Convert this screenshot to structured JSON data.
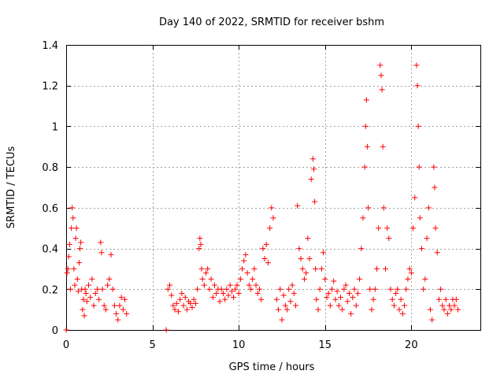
{
  "chart_data": {
    "type": "scatter",
    "title": "Day 140 of 2022, SRMTID for receiver bshm",
    "xlabel": "GPS time / hours",
    "ylabel": "SRMTID / TECUs",
    "xlim": [
      0,
      24
    ],
    "ylim": [
      0,
      1.4
    ],
    "x_ticks": [
      0,
      5,
      10,
      15,
      20
    ],
    "y_ticks": [
      0,
      0.2,
      0.4,
      0.6,
      0.8,
      1,
      1.2,
      1.4
    ],
    "x_tick_labels": [
      "0",
      "5",
      "10",
      "15",
      "20"
    ],
    "y_tick_labels": [
      "0",
      "0.2",
      "0.4",
      "0.6",
      "0.8",
      "1",
      "1.2",
      "1.4"
    ],
    "grid": true,
    "marker": "+",
    "series": [
      {
        "name": "bshm",
        "color": "#ff0000",
        "points": [
          [
            0.0,
            0.0
          ],
          [
            0.05,
            0.28
          ],
          [
            0.1,
            0.3
          ],
          [
            0.15,
            0.36
          ],
          [
            0.2,
            0.42
          ],
          [
            0.25,
            0.2
          ],
          [
            0.3,
            0.5
          ],
          [
            0.35,
            0.6
          ],
          [
            0.4,
            0.55
          ],
          [
            0.45,
            0.3
          ],
          [
            0.5,
            0.22
          ],
          [
            0.55,
            0.45
          ],
          [
            0.6,
            0.5
          ],
          [
            0.65,
            0.25
          ],
          [
            0.7,
            0.19
          ],
          [
            0.75,
            0.33
          ],
          [
            0.8,
            0.4
          ],
          [
            0.85,
            0.43
          ],
          [
            0.9,
            0.2
          ],
          [
            0.95,
            0.1
          ],
          [
            1.0,
            0.15
          ],
          [
            1.05,
            0.07
          ],
          [
            1.1,
            0.2
          ],
          [
            1.15,
            0.18
          ],
          [
            1.2,
            0.14
          ],
          [
            1.3,
            0.22
          ],
          [
            1.4,
            0.16
          ],
          [
            1.5,
            0.25
          ],
          [
            1.6,
            0.12
          ],
          [
            1.7,
            0.18
          ],
          [
            1.8,
            0.2
          ],
          [
            1.9,
            0.15
          ],
          [
            2.0,
            0.43
          ],
          [
            2.05,
            0.38
          ],
          [
            2.1,
            0.2
          ],
          [
            2.2,
            0.12
          ],
          [
            2.3,
            0.1
          ],
          [
            2.4,
            0.22
          ],
          [
            2.5,
            0.25
          ],
          [
            2.6,
            0.37
          ],
          [
            2.7,
            0.2
          ],
          [
            2.8,
            0.12
          ],
          [
            2.9,
            0.08
          ],
          [
            3.0,
            0.05
          ],
          [
            3.1,
            0.12
          ],
          [
            3.2,
            0.16
          ],
          [
            3.3,
            0.1
          ],
          [
            3.4,
            0.15
          ],
          [
            3.5,
            0.08
          ],
          [
            5.8,
            0.0
          ],
          [
            5.9,
            0.2
          ],
          [
            6.0,
            0.22
          ],
          [
            6.1,
            0.17
          ],
          [
            6.2,
            0.12
          ],
          [
            6.3,
            0.1
          ],
          [
            6.4,
            0.13
          ],
          [
            6.5,
            0.09
          ],
          [
            6.6,
            0.15
          ],
          [
            6.7,
            0.18
          ],
          [
            6.8,
            0.12
          ],
          [
            6.9,
            0.16
          ],
          [
            7.0,
            0.1
          ],
          [
            7.1,
            0.14
          ],
          [
            7.2,
            0.13
          ],
          [
            7.3,
            0.11
          ],
          [
            7.4,
            0.15
          ],
          [
            7.5,
            0.13
          ],
          [
            7.6,
            0.2
          ],
          [
            7.7,
            0.4
          ],
          [
            7.75,
            0.45
          ],
          [
            7.8,
            0.42
          ],
          [
            7.85,
            0.3
          ],
          [
            7.9,
            0.25
          ],
          [
            8.0,
            0.22
          ],
          [
            8.1,
            0.28
          ],
          [
            8.2,
            0.3
          ],
          [
            8.3,
            0.2
          ],
          [
            8.4,
            0.25
          ],
          [
            8.5,
            0.16
          ],
          [
            8.6,
            0.22
          ],
          [
            8.7,
            0.18
          ],
          [
            8.8,
            0.2
          ],
          [
            8.9,
            0.14
          ],
          [
            9.0,
            0.2
          ],
          [
            9.1,
            0.18
          ],
          [
            9.2,
            0.15
          ],
          [
            9.3,
            0.2
          ],
          [
            9.4,
            0.17
          ],
          [
            9.5,
            0.22
          ],
          [
            9.6,
            0.19
          ],
          [
            9.7,
            0.16
          ],
          [
            9.8,
            0.2
          ],
          [
            9.9,
            0.22
          ],
          [
            10.0,
            0.18
          ],
          [
            10.1,
            0.25
          ],
          [
            10.2,
            0.3
          ],
          [
            10.3,
            0.34
          ],
          [
            10.4,
            0.37
          ],
          [
            10.5,
            0.28
          ],
          [
            10.6,
            0.22
          ],
          [
            10.7,
            0.2
          ],
          [
            10.8,
            0.25
          ],
          [
            10.9,
            0.3
          ],
          [
            11.0,
            0.22
          ],
          [
            11.1,
            0.18
          ],
          [
            11.2,
            0.2
          ],
          [
            11.3,
            0.15
          ],
          [
            11.4,
            0.4
          ],
          [
            11.5,
            0.35
          ],
          [
            11.6,
            0.42
          ],
          [
            11.7,
            0.33
          ],
          [
            11.8,
            0.5
          ],
          [
            11.9,
            0.6
          ],
          [
            12.0,
            0.55
          ],
          [
            12.2,
            0.15
          ],
          [
            12.3,
            0.1
          ],
          [
            12.4,
            0.2
          ],
          [
            12.5,
            0.05
          ],
          [
            12.6,
            0.17
          ],
          [
            12.7,
            0.12
          ],
          [
            12.8,
            0.1
          ],
          [
            12.9,
            0.2
          ],
          [
            13.0,
            0.14
          ],
          [
            13.1,
            0.22
          ],
          [
            13.2,
            0.18
          ],
          [
            13.3,
            0.12
          ],
          [
            13.4,
            0.61
          ],
          [
            13.5,
            0.4
          ],
          [
            13.6,
            0.35
          ],
          [
            13.7,
            0.3
          ],
          [
            13.8,
            0.25
          ],
          [
            13.9,
            0.28
          ],
          [
            14.0,
            0.45
          ],
          [
            14.1,
            0.35
          ],
          [
            14.2,
            0.74
          ],
          [
            14.3,
            0.84
          ],
          [
            14.35,
            0.79
          ],
          [
            14.4,
            0.63
          ],
          [
            14.45,
            0.3
          ],
          [
            14.5,
            0.15
          ],
          [
            14.6,
            0.1
          ],
          [
            14.7,
            0.2
          ],
          [
            14.8,
            0.3
          ],
          [
            14.9,
            0.38
          ],
          [
            15.0,
            0.25
          ],
          [
            15.1,
            0.16
          ],
          [
            15.2,
            0.18
          ],
          [
            15.3,
            0.12
          ],
          [
            15.4,
            0.2
          ],
          [
            15.5,
            0.24
          ],
          [
            15.6,
            0.15
          ],
          [
            15.7,
            0.19
          ],
          [
            15.8,
            0.12
          ],
          [
            15.9,
            0.16
          ],
          [
            16.0,
            0.1
          ],
          [
            16.1,
            0.2
          ],
          [
            16.2,
            0.22
          ],
          [
            16.3,
            0.14
          ],
          [
            16.4,
            0.18
          ],
          [
            16.5,
            0.08
          ],
          [
            16.6,
            0.16
          ],
          [
            16.7,
            0.2
          ],
          [
            16.8,
            0.12
          ],
          [
            16.9,
            0.18
          ],
          [
            17.0,
            0.25
          ],
          [
            17.1,
            0.4
          ],
          [
            17.2,
            0.55
          ],
          [
            17.3,
            0.8
          ],
          [
            17.35,
            1.0
          ],
          [
            17.4,
            1.13
          ],
          [
            17.45,
            0.9
          ],
          [
            17.5,
            0.6
          ],
          [
            17.6,
            0.2
          ],
          [
            17.7,
            0.1
          ],
          [
            17.8,
            0.15
          ],
          [
            17.9,
            0.2
          ],
          [
            18.0,
            0.3
          ],
          [
            18.1,
            0.5
          ],
          [
            18.2,
            1.3
          ],
          [
            18.25,
            1.25
          ],
          [
            18.3,
            1.18
          ],
          [
            18.35,
            0.9
          ],
          [
            18.4,
            0.6
          ],
          [
            18.5,
            0.3
          ],
          [
            18.6,
            0.5
          ],
          [
            18.7,
            0.45
          ],
          [
            18.8,
            0.2
          ],
          [
            18.9,
            0.15
          ],
          [
            19.0,
            0.12
          ],
          [
            19.1,
            0.18
          ],
          [
            19.2,
            0.2
          ],
          [
            19.3,
            0.1
          ],
          [
            19.4,
            0.15
          ],
          [
            19.5,
            0.08
          ],
          [
            19.6,
            0.12
          ],
          [
            19.7,
            0.2
          ],
          [
            19.8,
            0.25
          ],
          [
            19.9,
            0.3
          ],
          [
            20.0,
            0.28
          ],
          [
            20.1,
            0.5
          ],
          [
            20.2,
            0.65
          ],
          [
            20.3,
            1.3
          ],
          [
            20.35,
            1.2
          ],
          [
            20.4,
            1.0
          ],
          [
            20.45,
            0.8
          ],
          [
            20.5,
            0.55
          ],
          [
            20.6,
            0.4
          ],
          [
            20.7,
            0.2
          ],
          [
            20.8,
            0.25
          ],
          [
            20.9,
            0.45
          ],
          [
            21.0,
            0.6
          ],
          [
            21.1,
            0.1
          ],
          [
            21.2,
            0.05
          ],
          [
            21.3,
            0.8
          ],
          [
            21.35,
            0.7
          ],
          [
            21.4,
            0.5
          ],
          [
            21.5,
            0.38
          ],
          [
            21.6,
            0.15
          ],
          [
            21.7,
            0.2
          ],
          [
            21.8,
            0.12
          ],
          [
            21.9,
            0.1
          ],
          [
            22.0,
            0.15
          ],
          [
            22.1,
            0.08
          ],
          [
            22.2,
            0.12
          ],
          [
            22.3,
            0.1
          ],
          [
            22.4,
            0.15
          ],
          [
            22.5,
            0.12
          ],
          [
            22.6,
            0.15
          ],
          [
            22.7,
            0.1
          ]
        ]
      }
    ]
  }
}
